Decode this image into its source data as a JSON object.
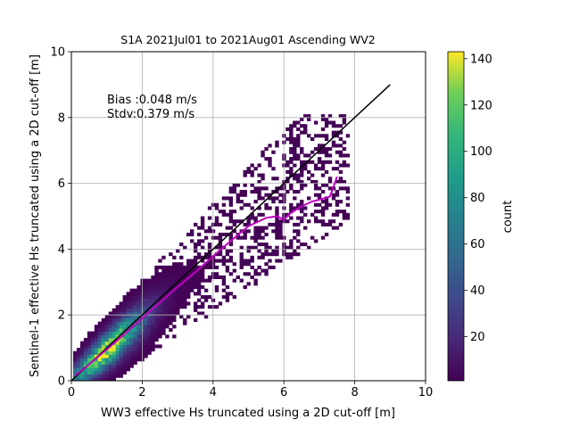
{
  "chart_data": {
    "type": "heatmap",
    "title": "S1A 2021Jul01 to 2021Aug01 Ascending WV2",
    "xlabel": "WW3 effective Hs truncated using a 2D cut-off [m]",
    "ylabel": "Sentinel-1 effective Hs truncated using a 2D cut-off [m]",
    "xlim": [
      0,
      10
    ],
    "ylim": [
      0,
      10
    ],
    "xticks": [
      "0",
      "2",
      "4",
      "6",
      "8",
      "10"
    ],
    "yticks": [
      "0",
      "2",
      "4",
      "6",
      "8",
      "10"
    ],
    "grid": true,
    "annotations": [
      "Bias :0.048 m/s",
      "Stdv:0.379 m/s"
    ],
    "colorbar": {
      "label": "count",
      "range": [
        1,
        143
      ],
      "ticks": [
        "20",
        "40",
        "60",
        "80",
        "100",
        "120",
        "140"
      ],
      "colormap": "viridis"
    },
    "density_model": {
      "slope": 0.93,
      "peak_count": 140,
      "peak_center": 1.0,
      "peak_width": 1.0,
      "scatter_sigma_base": 0.28,
      "scatter_sigma_gain": 0.06,
      "x_extent": [
        0.05,
        7.8
      ]
    },
    "identity_line": {
      "x": [
        0,
        9
      ],
      "y": [
        0,
        9
      ],
      "color": "#000000"
    },
    "mean_curve": {
      "color": "#c000c0",
      "x": [
        0.1,
        0.5,
        1.0,
        1.5,
        2.0,
        2.5,
        3.0,
        3.5,
        4.0,
        4.5,
        5.0,
        5.5,
        5.8,
        6.0,
        6.2,
        6.5,
        6.8,
        7.0,
        7.3,
        7.5
      ],
      "y": [
        0.15,
        0.5,
        0.95,
        1.42,
        1.9,
        2.38,
        2.85,
        3.3,
        3.78,
        4.25,
        4.7,
        4.95,
        5.0,
        4.9,
        5.1,
        5.3,
        5.45,
        5.5,
        5.6,
        6.2
      ]
    }
  }
}
